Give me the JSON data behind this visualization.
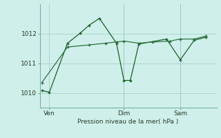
{
  "bg_color": "#cff0ea",
  "grid_color": "#a8cfc8",
  "line_color1": "#1a5e28",
  "line_color2": "#2d7040",
  "series1_x": [
    0.0,
    0.35,
    1.2,
    1.8,
    2.2,
    2.7,
    3.5,
    3.85,
    4.15,
    4.55,
    5.85,
    6.5,
    7.15,
    7.7
  ],
  "series1_y": [
    1010.08,
    1010.02,
    1011.68,
    1012.02,
    1012.28,
    1012.52,
    1011.68,
    1010.42,
    1010.42,
    1011.65,
    1011.82,
    1011.12,
    1011.78,
    1011.88
  ],
  "series2_x": [
    0.0,
    1.2,
    2.2,
    3.0,
    3.5,
    3.85,
    4.55,
    5.2,
    6.0,
    6.5,
    7.15,
    7.7
  ],
  "series2_y": [
    1010.35,
    1011.55,
    1011.62,
    1011.68,
    1011.72,
    1011.75,
    1011.68,
    1011.72,
    1011.75,
    1011.82,
    1011.82,
    1011.92
  ],
  "vline_x": 3.85,
  "vline2_x": 6.5,
  "day_labels": [
    "Ven",
    "Dim",
    "Sam"
  ],
  "day_positions": [
    0.35,
    3.85,
    6.5
  ],
  "xlabel": "Pression niveau de la mer( hPa )",
  "ylim": [
    1009.5,
    1013.0
  ],
  "xlim": [
    -0.1,
    8.2
  ],
  "yticks": [
    1010,
    1011,
    1012
  ],
  "ytick_labels": [
    "1010",
    "1011",
    "1012"
  ]
}
